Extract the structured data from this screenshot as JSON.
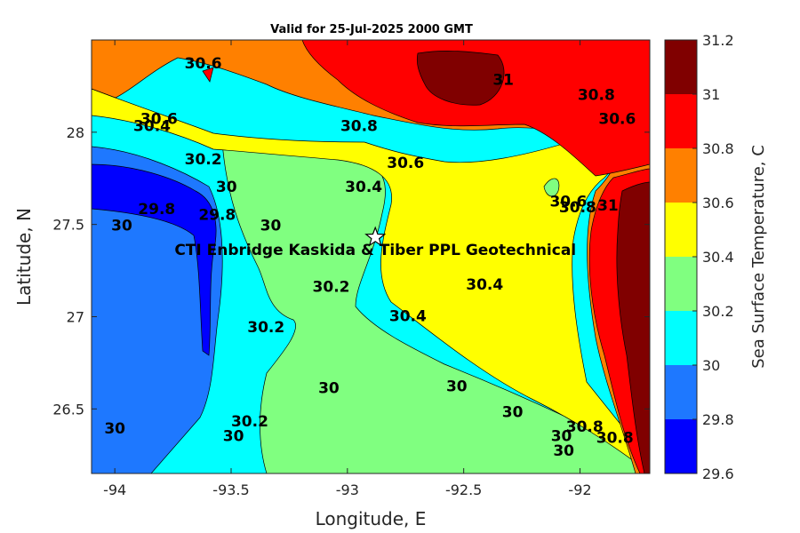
{
  "chart_data": {
    "type": "contour",
    "title": "Valid for 25-Jul-2025 2000 GMT",
    "xlabel": "Longitude, E",
    "ylabel": "Latitude, N",
    "xlim": [
      -94.1,
      -91.7
    ],
    "ylim": [
      26.15,
      28.5
    ],
    "xticks": [
      -94,
      -93.5,
      -93,
      -92.5,
      -92
    ],
    "yticks": [
      26.5,
      27,
      27.5,
      28
    ],
    "colorbar": {
      "label": "Sea Surface Temperature, C",
      "levels": [
        29.6,
        29.8,
        30,
        30.2,
        30.4,
        30.6,
        30.8,
        31,
        31.2
      ],
      "colors": [
        "#0000ff",
        "#1e78ff",
        "#00ffff",
        "#80ff80",
        "#ffff00",
        "#ff8000",
        "#ff0000",
        "#800000"
      ]
    },
    "site": {
      "name": "CTI Enbridge  Kaskida & Tiber PPL Geotechnical",
      "lon": -92.88,
      "lat": 27.43,
      "marker": "star"
    },
    "contour_labels": [
      {
        "text": "30.6",
        "lon": -93.62,
        "lat": 28.37
      },
      {
        "text": "31",
        "lon": -92.33,
        "lat": 28.28
      },
      {
        "text": "30.8",
        "lon": -91.93,
        "lat": 28.2
      },
      {
        "text": "30.6",
        "lon": -93.81,
        "lat": 28.07
      },
      {
        "text": "30.4",
        "lon": -93.84,
        "lat": 28.03
      },
      {
        "text": "30.8",
        "lon": -92.95,
        "lat": 28.03
      },
      {
        "text": "30.6",
        "lon": -91.84,
        "lat": 28.07
      },
      {
        "text": "30.2",
        "lon": -93.62,
        "lat": 27.85
      },
      {
        "text": "30.6",
        "lon": -92.75,
        "lat": 27.83
      },
      {
        "text": "30",
        "lon": -93.52,
        "lat": 27.7
      },
      {
        "text": "30.4",
        "lon": -92.93,
        "lat": 27.7
      },
      {
        "text": "29.8",
        "lon": -93.82,
        "lat": 27.58
      },
      {
        "text": "29.8",
        "lon": -93.56,
        "lat": 27.55
      },
      {
        "text": "30.6",
        "lon": -92.05,
        "lat": 27.62
      },
      {
        "text": "30.8",
        "lon": -92.01,
        "lat": 27.59
      },
      {
        "text": "31",
        "lon": -91.88,
        "lat": 27.6
      },
      {
        "text": "30",
        "lon": -93.97,
        "lat": 27.49
      },
      {
        "text": "30",
        "lon": -93.33,
        "lat": 27.49
      },
      {
        "text": "30.2",
        "lon": -93.07,
        "lat": 27.16
      },
      {
        "text": "30.4",
        "lon": -92.41,
        "lat": 27.17
      },
      {
        "text": "30.4",
        "lon": -92.74,
        "lat": 27.0
      },
      {
        "text": "30.2",
        "lon": -93.35,
        "lat": 26.94
      },
      {
        "text": "30",
        "lon": -93.08,
        "lat": 26.61
      },
      {
        "text": "30",
        "lon": -92.53,
        "lat": 26.62
      },
      {
        "text": "30",
        "lon": -92.29,
        "lat": 26.48
      },
      {
        "text": "30.2",
        "lon": -93.42,
        "lat": 26.43
      },
      {
        "text": "30",
        "lon": -94.0,
        "lat": 26.39
      },
      {
        "text": "30",
        "lon": -93.49,
        "lat": 26.35
      },
      {
        "text": "30",
        "lon": -92.08,
        "lat": 26.35
      },
      {
        "text": "30",
        "lon": -92.07,
        "lat": 26.27
      },
      {
        "text": "30.8",
        "lon": -91.98,
        "lat": 26.4
      },
      {
        "text": "30.8",
        "lon": -91.85,
        "lat": 26.34
      }
    ]
  }
}
